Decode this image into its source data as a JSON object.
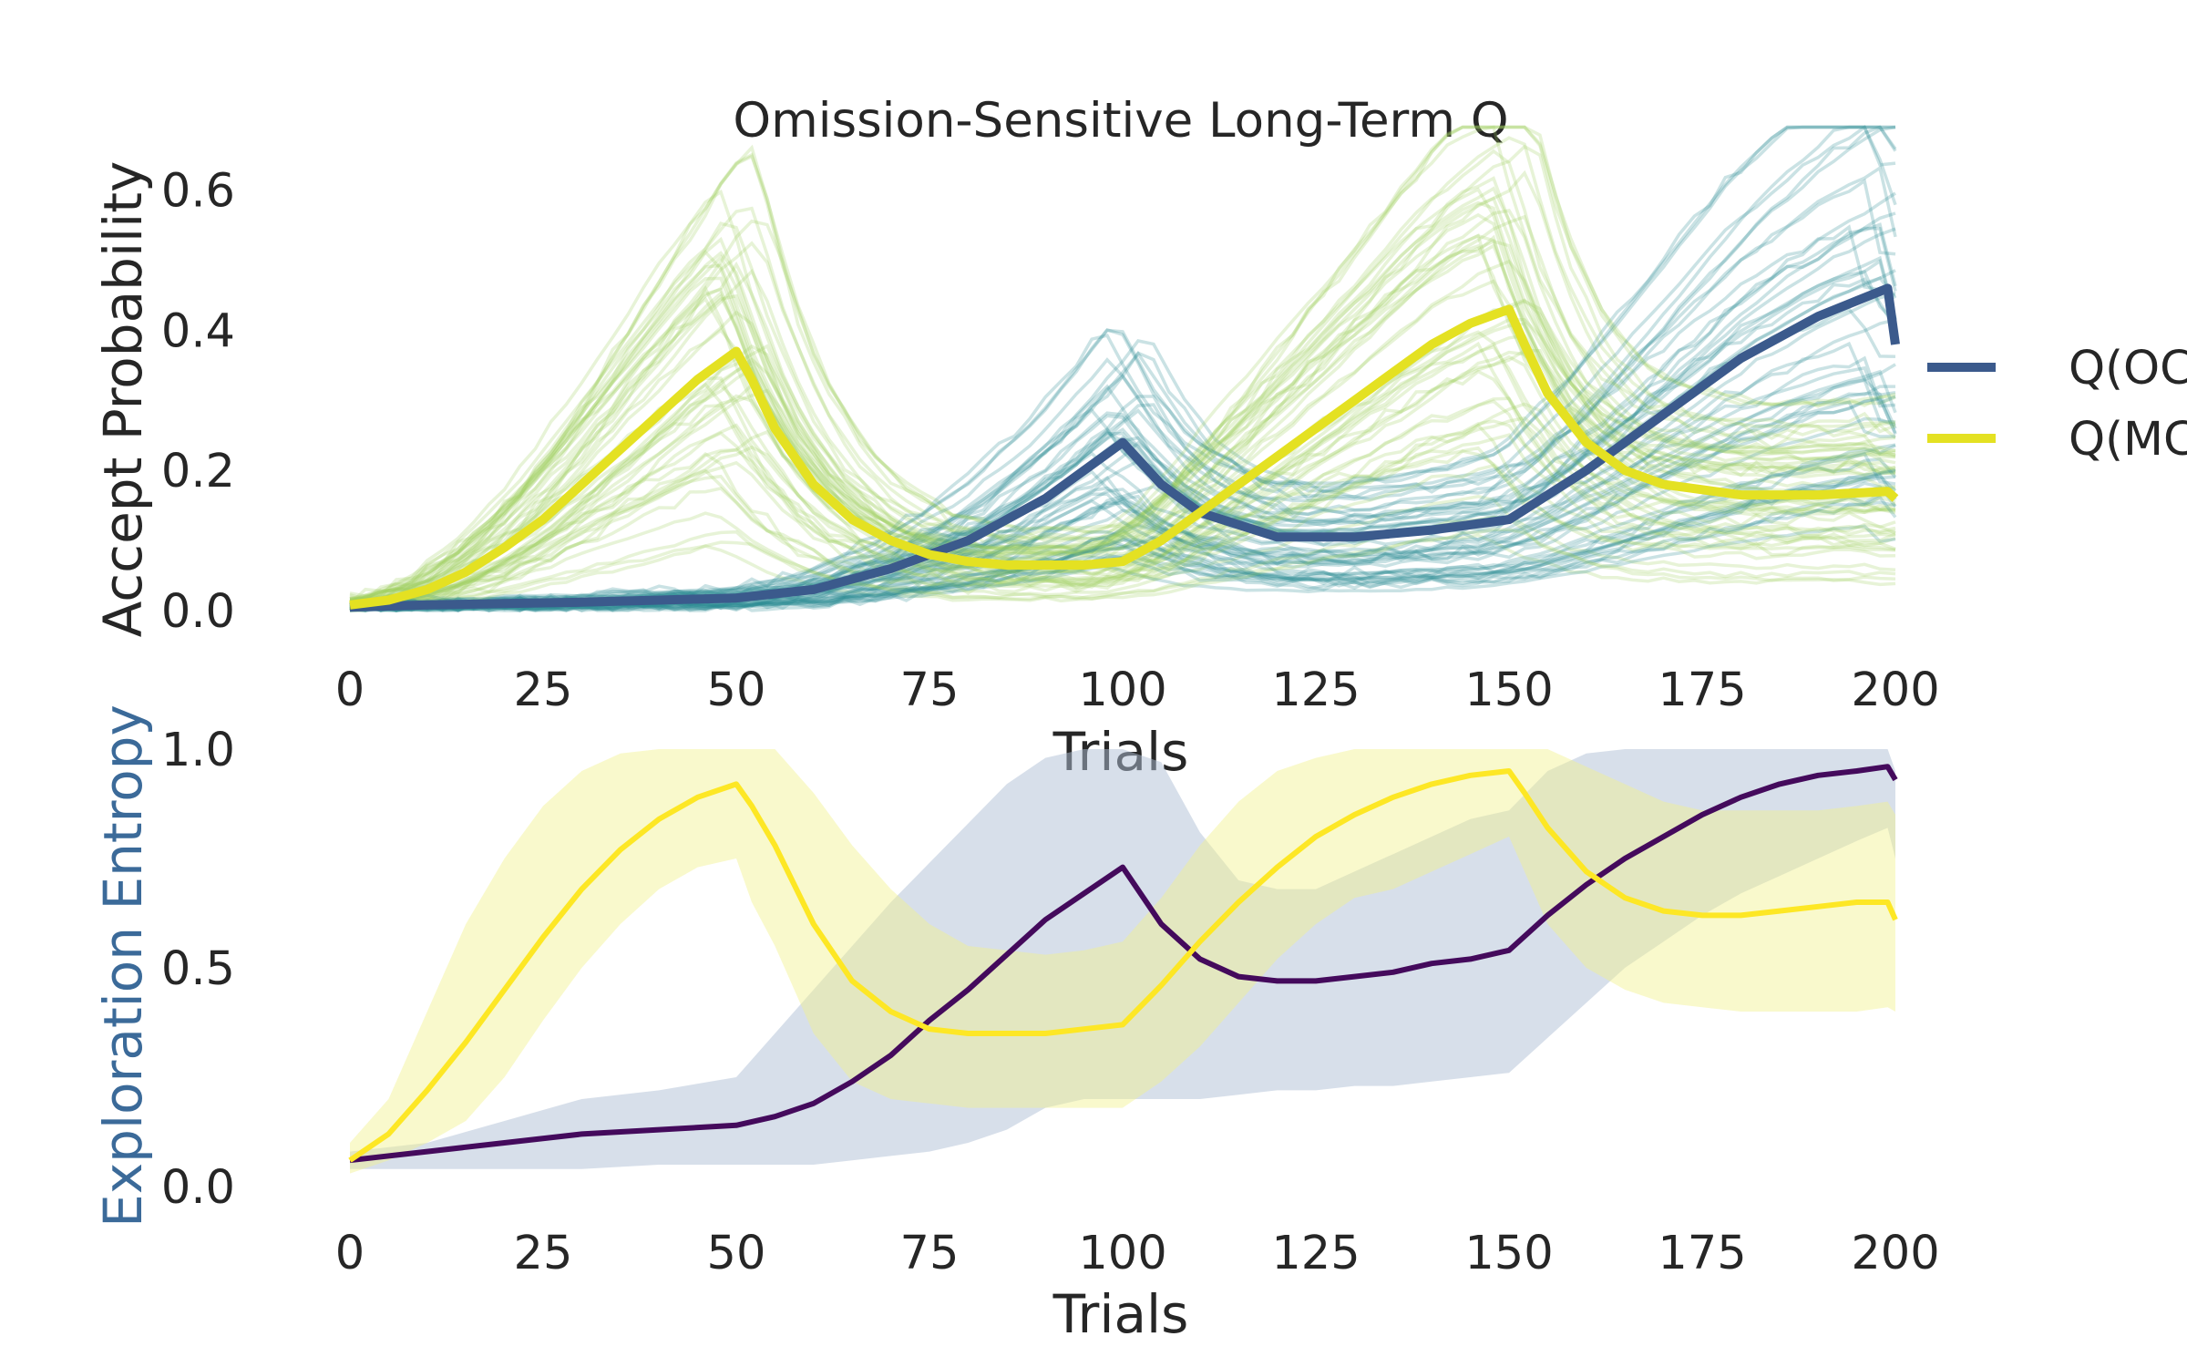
{
  "figure": {
    "title": "Omission-Sensitive Long-Term Q"
  },
  "chart_data": [
    {
      "type": "line",
      "title": "Omission-Sensitive Long-Term Q",
      "xlabel": "Trials",
      "ylabel": "Accept Probability",
      "xlim": [
        0,
        200
      ],
      "ylim": [
        0,
        0.7
      ],
      "xticks": [
        "0",
        "25",
        "50",
        "75",
        "100",
        "125",
        "150",
        "175",
        "200"
      ],
      "yticks": [
        "0.0",
        "0.2",
        "0.4",
        "0.6"
      ],
      "grid": false,
      "legend_placement": "right, outside, clipped",
      "individual_run_colors": {
        "Q(OC": "#2a8d93",
        "Q(MC": "#9fd061"
      },
      "series": [
        {
          "name": "Q(OC",
          "color": "#3b5a8c",
          "x": [
            0,
            10,
            20,
            30,
            40,
            50,
            60,
            70,
            80,
            90,
            100,
            105,
            110,
            120,
            130,
            140,
            150,
            160,
            170,
            180,
            190,
            199,
            200
          ],
          "values": [
            0.005,
            0.008,
            0.01,
            0.012,
            0.015,
            0.018,
            0.03,
            0.06,
            0.1,
            0.16,
            0.24,
            0.18,
            0.14,
            0.105,
            0.105,
            0.115,
            0.13,
            0.2,
            0.28,
            0.36,
            0.42,
            0.46,
            0.38
          ]
        },
        {
          "name": "Q(MC",
          "color": "#e4e122",
          "x": [
            0,
            5,
            10,
            15,
            20,
            25,
            30,
            35,
            40,
            45,
            50,
            52,
            55,
            60,
            65,
            70,
            75,
            80,
            85,
            90,
            95,
            100,
            105,
            110,
            115,
            120,
            125,
            130,
            135,
            140,
            145,
            150,
            152,
            155,
            160,
            165,
            170,
            180,
            190,
            199,
            200
          ],
          "values": [
            0.008,
            0.015,
            0.03,
            0.055,
            0.09,
            0.13,
            0.18,
            0.23,
            0.28,
            0.33,
            0.37,
            0.33,
            0.26,
            0.18,
            0.13,
            0.1,
            0.08,
            0.07,
            0.065,
            0.065,
            0.065,
            0.07,
            0.1,
            0.14,
            0.18,
            0.22,
            0.26,
            0.3,
            0.34,
            0.38,
            0.41,
            0.43,
            0.38,
            0.31,
            0.24,
            0.2,
            0.18,
            0.165,
            0.165,
            0.17,
            0.16
          ]
        }
      ]
    },
    {
      "type": "line",
      "xlabel": "Trials",
      "ylabel": "Exploration Entropy",
      "ylabel_color": "#3b6a99",
      "xlim": [
        0,
        200
      ],
      "ylim": [
        0,
        1.0
      ],
      "xticks": [
        "0",
        "25",
        "50",
        "75",
        "100",
        "125",
        "150",
        "175",
        "200"
      ],
      "yticks": [
        "0.0",
        "0.5",
        "1.0"
      ],
      "grid": false,
      "series": [
        {
          "color": "#440a5c",
          "band_color": "#b0c0d6",
          "x": [
            0,
            10,
            20,
            30,
            40,
            50,
            55,
            60,
            65,
            70,
            75,
            80,
            85,
            90,
            95,
            100,
            105,
            110,
            115,
            120,
            125,
            130,
            135,
            140,
            145,
            150,
            155,
            160,
            165,
            170,
            175,
            180,
            185,
            190,
            195,
            199,
            200
          ],
          "values": [
            0.06,
            0.08,
            0.1,
            0.12,
            0.13,
            0.14,
            0.16,
            0.19,
            0.24,
            0.3,
            0.38,
            0.45,
            0.53,
            0.61,
            0.67,
            0.73,
            0.6,
            0.52,
            0.48,
            0.47,
            0.47,
            0.48,
            0.49,
            0.51,
            0.52,
            0.54,
            0.62,
            0.69,
            0.75,
            0.8,
            0.85,
            0.89,
            0.92,
            0.94,
            0.95,
            0.96,
            0.93
          ],
          "band_lower": [
            0.04,
            0.04,
            0.04,
            0.04,
            0.05,
            0.05,
            0.05,
            0.05,
            0.06,
            0.07,
            0.08,
            0.1,
            0.13,
            0.18,
            0.2,
            0.2,
            0.2,
            0.2,
            0.21,
            0.22,
            0.22,
            0.23,
            0.23,
            0.24,
            0.25,
            0.26,
            0.34,
            0.42,
            0.5,
            0.56,
            0.62,
            0.67,
            0.71,
            0.75,
            0.79,
            0.82,
            0.75
          ],
          "band_upper": [
            0.08,
            0.1,
            0.15,
            0.2,
            0.22,
            0.25,
            0.35,
            0.45,
            0.55,
            0.65,
            0.74,
            0.83,
            0.92,
            0.98,
            1.0,
            1.0,
            0.97,
            0.81,
            0.7,
            0.68,
            0.68,
            0.72,
            0.76,
            0.8,
            0.84,
            0.86,
            0.95,
            0.99,
            1.0,
            1.0,
            1.0,
            1.0,
            1.0,
            1.0,
            1.0,
            1.0,
            0.95
          ]
        },
        {
          "color": "#fde725",
          "band_color": "#f2f28e",
          "x": [
            0,
            5,
            10,
            15,
            20,
            25,
            30,
            35,
            40,
            45,
            50,
            52,
            55,
            60,
            65,
            70,
            75,
            80,
            85,
            90,
            95,
            100,
            105,
            110,
            115,
            120,
            125,
            130,
            135,
            140,
            145,
            150,
            152,
            155,
            160,
            165,
            170,
            175,
            180,
            185,
            190,
            195,
            199,
            200
          ],
          "values": [
            0.06,
            0.12,
            0.22,
            0.33,
            0.45,
            0.57,
            0.68,
            0.77,
            0.84,
            0.89,
            0.92,
            0.87,
            0.78,
            0.6,
            0.47,
            0.4,
            0.36,
            0.35,
            0.35,
            0.35,
            0.36,
            0.37,
            0.46,
            0.56,
            0.65,
            0.73,
            0.8,
            0.85,
            0.89,
            0.92,
            0.94,
            0.95,
            0.9,
            0.82,
            0.72,
            0.66,
            0.63,
            0.62,
            0.62,
            0.63,
            0.64,
            0.65,
            0.65,
            0.61
          ],
          "band_lower": [
            0.03,
            0.06,
            0.1,
            0.15,
            0.25,
            0.38,
            0.5,
            0.6,
            0.68,
            0.73,
            0.75,
            0.65,
            0.55,
            0.35,
            0.24,
            0.2,
            0.19,
            0.18,
            0.18,
            0.18,
            0.18,
            0.18,
            0.24,
            0.32,
            0.42,
            0.52,
            0.6,
            0.66,
            0.68,
            0.72,
            0.76,
            0.8,
            0.72,
            0.6,
            0.5,
            0.45,
            0.42,
            0.41,
            0.4,
            0.4,
            0.4,
            0.4,
            0.41,
            0.4
          ],
          "band_upper": [
            0.1,
            0.2,
            0.4,
            0.6,
            0.75,
            0.87,
            0.95,
            0.99,
            1.0,
            1.0,
            1.0,
            1.0,
            1.0,
            0.9,
            0.78,
            0.68,
            0.6,
            0.55,
            0.54,
            0.53,
            0.54,
            0.56,
            0.66,
            0.78,
            0.88,
            0.95,
            0.98,
            1.0,
            1.0,
            1.0,
            1.0,
            1.0,
            1.0,
            1.0,
            0.96,
            0.92,
            0.88,
            0.86,
            0.86,
            0.86,
            0.86,
            0.87,
            0.88,
            0.85
          ]
        }
      ]
    }
  ]
}
